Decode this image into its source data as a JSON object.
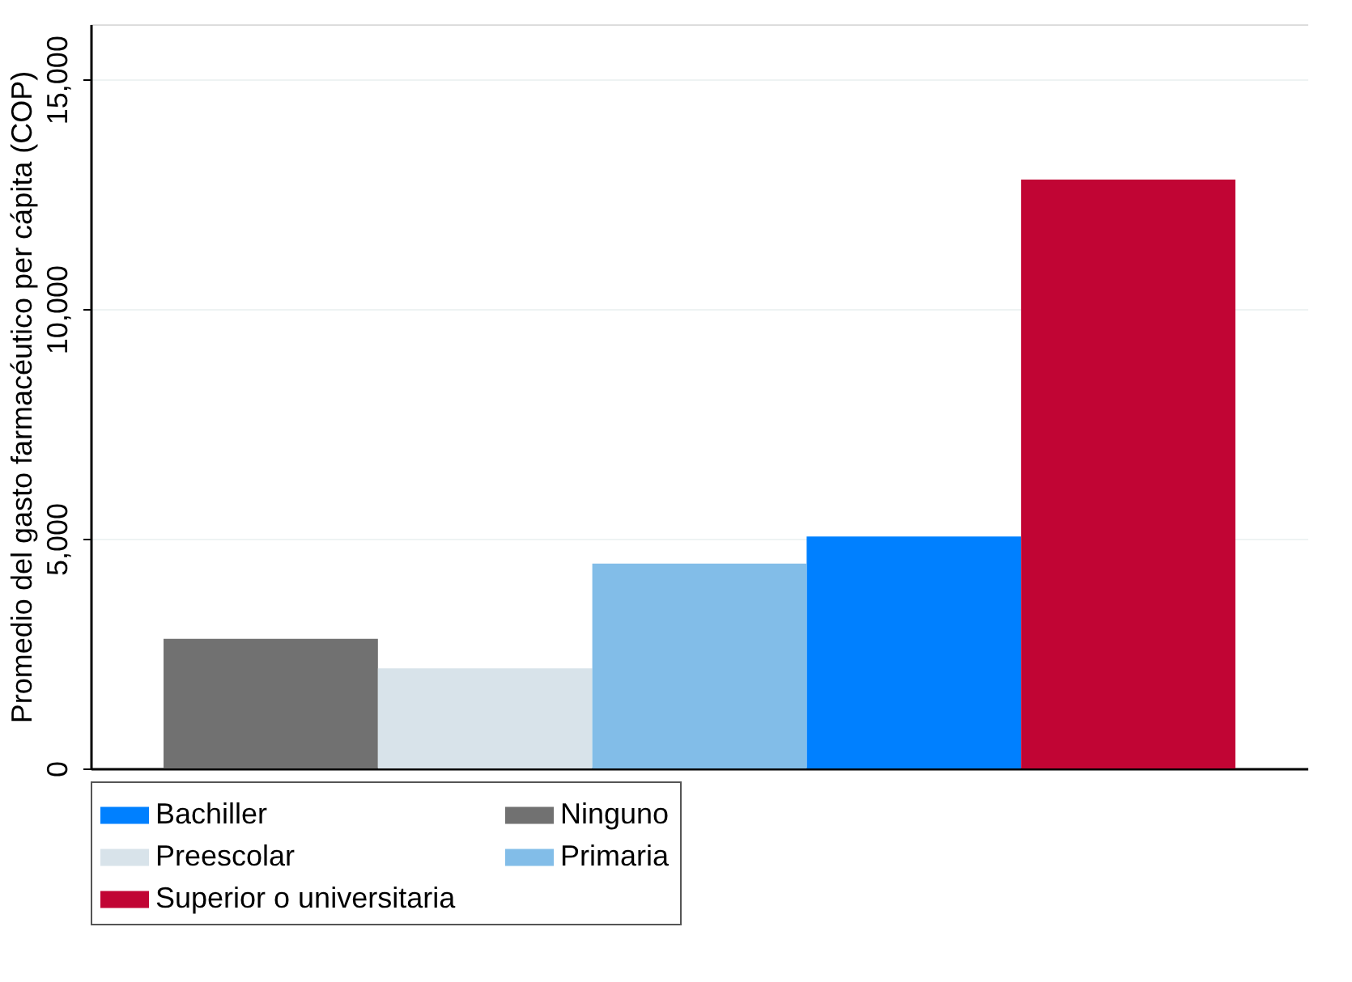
{
  "chart_data": {
    "type": "bar",
    "ylabel": "Promedio del gasto farmacéutico per cápita (COP)",
    "categories": [
      null,
      null,
      null,
      null,
      null
    ],
    "series": [
      {
        "name": "Bachiller",
        "color": "#0080ff",
        "values": [
          null,
          null,
          null,
          5050,
          null
        ]
      },
      {
        "name": "Ninguno",
        "color": "#717171",
        "values": [
          2820,
          null,
          null,
          null,
          null
        ]
      },
      {
        "name": "Preescolar",
        "color": "#d8e3ea",
        "values": [
          null,
          2180,
          null,
          null,
          null
        ]
      },
      {
        "name": "Primaria",
        "color": "#82bde8",
        "values": [
          null,
          null,
          4460,
          null,
          null
        ]
      },
      {
        "name": "Superior o universitaria",
        "color": "#c10534",
        "values": [
          null,
          null,
          null,
          null,
          12820
        ]
      }
    ],
    "ylim": [
      0,
      16200
    ],
    "yticks": [
      {
        "value": 0,
        "label": "0"
      },
      {
        "value": 5000,
        "label": "5,000"
      },
      {
        "value": 10000,
        "label": "10,000"
      },
      {
        "value": 15000,
        "label": "15,000"
      }
    ],
    "grid": "y",
    "legend": "bottom",
    "tick_labels": "y"
  }
}
